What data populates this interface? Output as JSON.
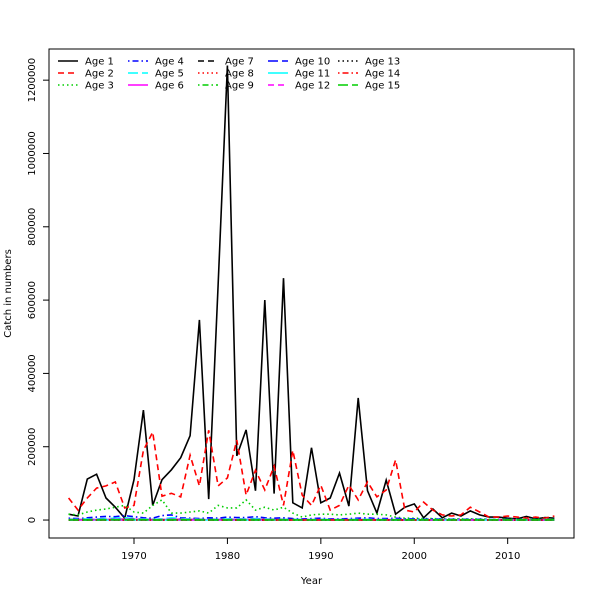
{
  "chart_data": {
    "type": "line",
    "title": "",
    "xlabel": "Year",
    "ylabel": "Catch in numbers",
    "xlim": [
      1960.9,
      2017.1
    ],
    "ylim": [
      -49000,
      1285000
    ],
    "xticks": [
      1970,
      1980,
      1990,
      2000,
      2010
    ],
    "yticks": [
      0,
      200000,
      400000,
      600000,
      800000,
      1000000,
      1200000
    ],
    "grid": false,
    "legend_position": "top-left",
    "x": [
      1963,
      1964,
      1965,
      1966,
      1967,
      1968,
      1969,
      1970,
      1971,
      1972,
      1973,
      1974,
      1975,
      1976,
      1977,
      1978,
      1979,
      1980,
      1981,
      1982,
      1983,
      1984,
      1985,
      1986,
      1987,
      1988,
      1989,
      1990,
      1991,
      1992,
      1993,
      1994,
      1995,
      1996,
      1997,
      1998,
      1999,
      2000,
      2001,
      2002,
      2003,
      2004,
      2005,
      2006,
      2007,
      2008,
      2009,
      2010,
      2011,
      2012,
      2013,
      2014,
      2015
    ],
    "series": [
      {
        "name": "Age 1",
        "color": "#000000",
        "lty": "solid",
        "values": [
          16000,
          11000,
          112000,
          125000,
          60000,
          35000,
          5000,
          110000,
          300000,
          40000,
          110000,
          137000,
          170000,
          230000,
          546000,
          57000,
          640000,
          1240000,
          175000,
          246000,
          80000,
          600000,
          72000,
          660000,
          47000,
          33000,
          197000,
          47000,
          60000,
          128000,
          38000,
          333000,
          80000,
          19000,
          109000,
          16000,
          35000,
          44000,
          6000,
          30000,
          6000,
          19000,
          11000,
          25000,
          14000,
          8000,
          8000,
          5000,
          3000,
          10000,
          3000,
          7000,
          5000
        ]
      },
      {
        "name": "Age 2",
        "color": "#ff0000",
        "lty": "dashed",
        "values": [
          60000,
          27000,
          60000,
          87000,
          93000,
          104000,
          33000,
          40000,
          190000,
          240000,
          65000,
          73000,
          63000,
          177000,
          93000,
          245000,
          93000,
          115000,
          218000,
          68000,
          136000,
          82000,
          147000,
          40000,
          190000,
          68000,
          40000,
          95000,
          27000,
          40000,
          95000,
          55000,
          104000,
          63000,
          82000,
          164000,
          27000,
          22000,
          49000,
          27000,
          14000,
          11000,
          14000,
          35000,
          22000,
          8000,
          8000,
          11000,
          8000,
          5000,
          8000,
          5000,
          11000
        ]
      },
      {
        "name": "Age 3",
        "color": "#00cd00",
        "lty": "dotted",
        "values": [
          16000,
          14000,
          22000,
          27000,
          30000,
          35000,
          40000,
          22000,
          19000,
          40000,
          55000,
          19000,
          19000,
          22000,
          25000,
          19000,
          40000,
          33000,
          33000,
          55000,
          27000,
          35000,
          27000,
          35000,
          19000,
          8000,
          14000,
          16000,
          16000,
          14000,
          16000,
          19000,
          16000,
          16000,
          14000,
          8000,
          5000,
          5000,
          4000,
          4000,
          3000,
          3000,
          3000,
          3000,
          3000,
          2000,
          2000,
          2000,
          2000,
          2000,
          2000,
          2000,
          2000
        ]
      },
      {
        "name": "Age 4",
        "color": "#0000ff",
        "lty": "dotdash",
        "values": [
          5000,
          4000,
          6000,
          8000,
          10000,
          9000,
          12000,
          9000,
          6000,
          5000,
          12000,
          14000,
          6000,
          5000,
          4000,
          6000,
          5000,
          8000,
          7000,
          7000,
          9000,
          6000,
          5000,
          6000,
          4000,
          3000,
          4000,
          5000,
          3000,
          3000,
          4000,
          5000,
          6000,
          4000,
          4000,
          5000,
          3000,
          3000,
          2000,
          3000,
          2000,
          2000,
          2000,
          2000,
          2000,
          1500,
          1500,
          1500,
          1500,
          1000,
          1000,
          1000,
          1000
        ]
      },
      {
        "name": "Age 5",
        "color": "#00ffff",
        "lty": "longdash",
        "values": [
          2000,
          2000,
          3000,
          3000,
          4000,
          5000,
          6000,
          4000,
          3000,
          2000,
          3000,
          6000,
          4000,
          3000,
          2000,
          2000,
          2000,
          3000,
          3000,
          3000,
          4000,
          3000,
          2000,
          2000,
          2000,
          1500,
          1500,
          2000,
          1500,
          1500,
          1500,
          2000,
          2000,
          1500,
          1500,
          1500,
          1000,
          1000,
          1000,
          1000,
          1000,
          1000,
          1000,
          1000,
          1000,
          800,
          800,
          800,
          800,
          800,
          800,
          800,
          800
        ]
      },
      {
        "name": "Age 6",
        "color": "#ff00ff",
        "lty": "solid",
        "values": [
          1000,
          1000,
          1000,
          1500,
          1500,
          2000,
          2000,
          2000,
          1500,
          1000,
          1000,
          2000,
          2000,
          1500,
          1000,
          1000,
          1000,
          1000,
          1500,
          1500,
          1500,
          1500,
          1000,
          1000,
          1000,
          800,
          800,
          1000,
          800,
          800,
          800,
          1000,
          1000,
          800,
          800,
          800,
          600,
          600,
          600,
          600,
          600,
          600,
          600,
          600,
          600,
          500,
          500,
          500,
          500,
          500,
          500,
          500,
          500
        ]
      },
      {
        "name": "Age 7",
        "color": "#000000",
        "lty": "dashed",
        "values": [
          800,
          800,
          800,
          1000,
          1000,
          1000,
          1200,
          1200,
          1000,
          800,
          800,
          1000,
          1200,
          1000,
          800,
          800,
          800,
          800,
          800,
          1000,
          1000,
          1000,
          800,
          800,
          800,
          600,
          600,
          600,
          600,
          600,
          600,
          600,
          600,
          600,
          600,
          600,
          500,
          500,
          500,
          500,
          500,
          500,
          500,
          500,
          500,
          400,
          400,
          400,
          400,
          400,
          400,
          400,
          400
        ]
      },
      {
        "name": "Age 8",
        "color": "#ff0000",
        "lty": "dotted",
        "values": [
          500,
          500,
          500,
          600,
          600,
          700,
          800,
          800,
          700,
          600,
          500,
          600,
          700,
          700,
          600,
          500,
          500,
          500,
          500,
          600,
          600,
          600,
          500,
          500,
          500,
          400,
          400,
          400,
          400,
          400,
          400,
          400,
          400,
          400,
          400,
          400,
          300,
          300,
          300,
          300,
          300,
          300,
          300,
          300,
          300,
          300,
          300,
          300,
          300,
          300,
          300,
          300,
          300
        ]
      },
      {
        "name": "Age 9",
        "color": "#00cd00",
        "lty": "dotdash",
        "values": [
          400,
          400,
          400,
          400,
          500,
          500,
          500,
          600,
          500,
          400,
          400,
          400,
          500,
          500,
          400,
          400,
          400,
          400,
          400,
          400,
          400,
          400,
          400,
          400,
          300,
          300,
          300,
          300,
          300,
          300,
          300,
          300,
          300,
          300,
          300,
          300,
          200,
          200,
          200,
          200,
          200,
          200,
          200,
          200,
          200,
          200,
          200,
          200,
          200,
          200,
          200,
          200,
          200
        ]
      },
      {
        "name": "Age 10",
        "color": "#0000ff",
        "lty": "longdash",
        "values": [
          300,
          300,
          300,
          300,
          300,
          400,
          400,
          400,
          400,
          300,
          300,
          300,
          300,
          400,
          300,
          300,
          300,
          300,
          300,
          300,
          300,
          300,
          300,
          300,
          200,
          200,
          200,
          200,
          200,
          200,
          200,
          200,
          200,
          200,
          200,
          200,
          200,
          200,
          200,
          200,
          200,
          200,
          200,
          200,
          200,
          150,
          150,
          150,
          150,
          150,
          150,
          150,
          150
        ]
      },
      {
        "name": "Age 11",
        "color": "#00ffff",
        "lty": "solid",
        "values": [
          200,
          200,
          200,
          200,
          200,
          300,
          300,
          300,
          300,
          200,
          200,
          200,
          200,
          300,
          200,
          200,
          200,
          200,
          200,
          200,
          200,
          200,
          200,
          200,
          150,
          150,
          150,
          150,
          150,
          150,
          150,
          150,
          150,
          150,
          150,
          150,
          100,
          100,
          100,
          100,
          100,
          100,
          100,
          100,
          100,
          100,
          100,
          100,
          100,
          100,
          100,
          100,
          100
        ]
      },
      {
        "name": "Age 12",
        "color": "#ff00ff",
        "lty": "dashed",
        "values": [
          150,
          150,
          150,
          150,
          150,
          200,
          200,
          200,
          200,
          150,
          150,
          150,
          150,
          200,
          150,
          150,
          150,
          150,
          150,
          150,
          150,
          150,
          150,
          150,
          100,
          100,
          100,
          100,
          100,
          100,
          100,
          100,
          100,
          100,
          100,
          100,
          100,
          100,
          100,
          100,
          100,
          100,
          100,
          100,
          100,
          80,
          80,
          80,
          80,
          80,
          80,
          80,
          80
        ]
      },
      {
        "name": "Age 13",
        "color": "#000000",
        "lty": "dotted",
        "values": [
          100,
          100,
          100,
          100,
          100,
          150,
          150,
          150,
          150,
          100,
          100,
          100,
          100,
          150,
          100,
          100,
          100,
          100,
          100,
          100,
          100,
          100,
          100,
          100,
          80,
          80,
          80,
          80,
          80,
          80,
          80,
          80,
          80,
          80,
          80,
          80,
          60,
          60,
          60,
          60,
          60,
          60,
          60,
          60,
          60,
          50,
          50,
          50,
          50,
          50,
          50,
          50,
          50
        ]
      },
      {
        "name": "Age 14",
        "color": "#ff0000",
        "lty": "dotdash",
        "values": [
          80,
          80,
          80,
          80,
          80,
          100,
          100,
          100,
          100,
          80,
          80,
          80,
          80,
          100,
          80,
          80,
          80,
          80,
          80,
          80,
          80,
          80,
          80,
          80,
          60,
          60,
          60,
          60,
          60,
          60,
          60,
          60,
          60,
          60,
          60,
          60,
          50,
          50,
          50,
          50,
          50,
          50,
          50,
          50,
          50,
          40,
          40,
          40,
          40,
          40,
          40,
          40,
          40
        ]
      },
      {
        "name": "Age 15",
        "color": "#00cd00",
        "lty": "longdash",
        "values": [
          500,
          500,
          500,
          500,
          600,
          600,
          700,
          700,
          600,
          500,
          500,
          500,
          600,
          600,
          500,
          500,
          500,
          500,
          500,
          500,
          500,
          500,
          500,
          500,
          400,
          400,
          400,
          400,
          400,
          400,
          400,
          400,
          400,
          400,
          400,
          400,
          300,
          300,
          300,
          300,
          300,
          300,
          300,
          300,
          300,
          300,
          300,
          300,
          300,
          300,
          300,
          300,
          300
        ]
      }
    ]
  }
}
